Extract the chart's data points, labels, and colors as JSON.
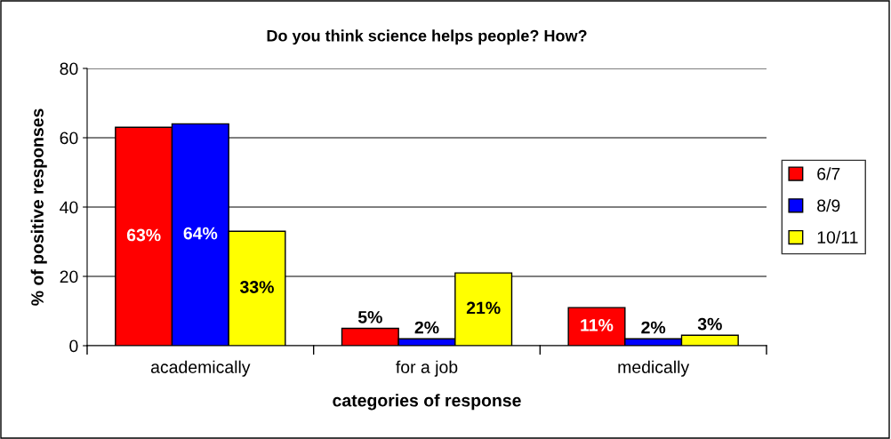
{
  "chart_data": {
    "type": "bar",
    "title": "Do you think science helps people? How?",
    "xlabel": "categories of response",
    "ylabel": "% of positive responses",
    "categories": [
      "academically",
      "for a job",
      "medically"
    ],
    "series": [
      {
        "name": "6/7",
        "color": "#ff0000",
        "values": [
          63,
          5,
          11
        ],
        "value_labels": [
          "63%",
          "5%",
          "11%"
        ]
      },
      {
        "name": "8/9",
        "color": "#0000ff",
        "values": [
          64,
          2,
          2
        ],
        "value_labels": [
          "64%",
          "2%",
          "2%"
        ]
      },
      {
        "name": "10/11",
        "color": "#ffff00",
        "values": [
          33,
          21,
          3
        ],
        "value_labels": [
          "33%",
          "21%",
          "3%"
        ]
      }
    ],
    "ylim": [
      0,
      80
    ],
    "yticks": [
      0,
      20,
      40,
      60,
      80
    ],
    "grid": "y",
    "legend": "right"
  }
}
